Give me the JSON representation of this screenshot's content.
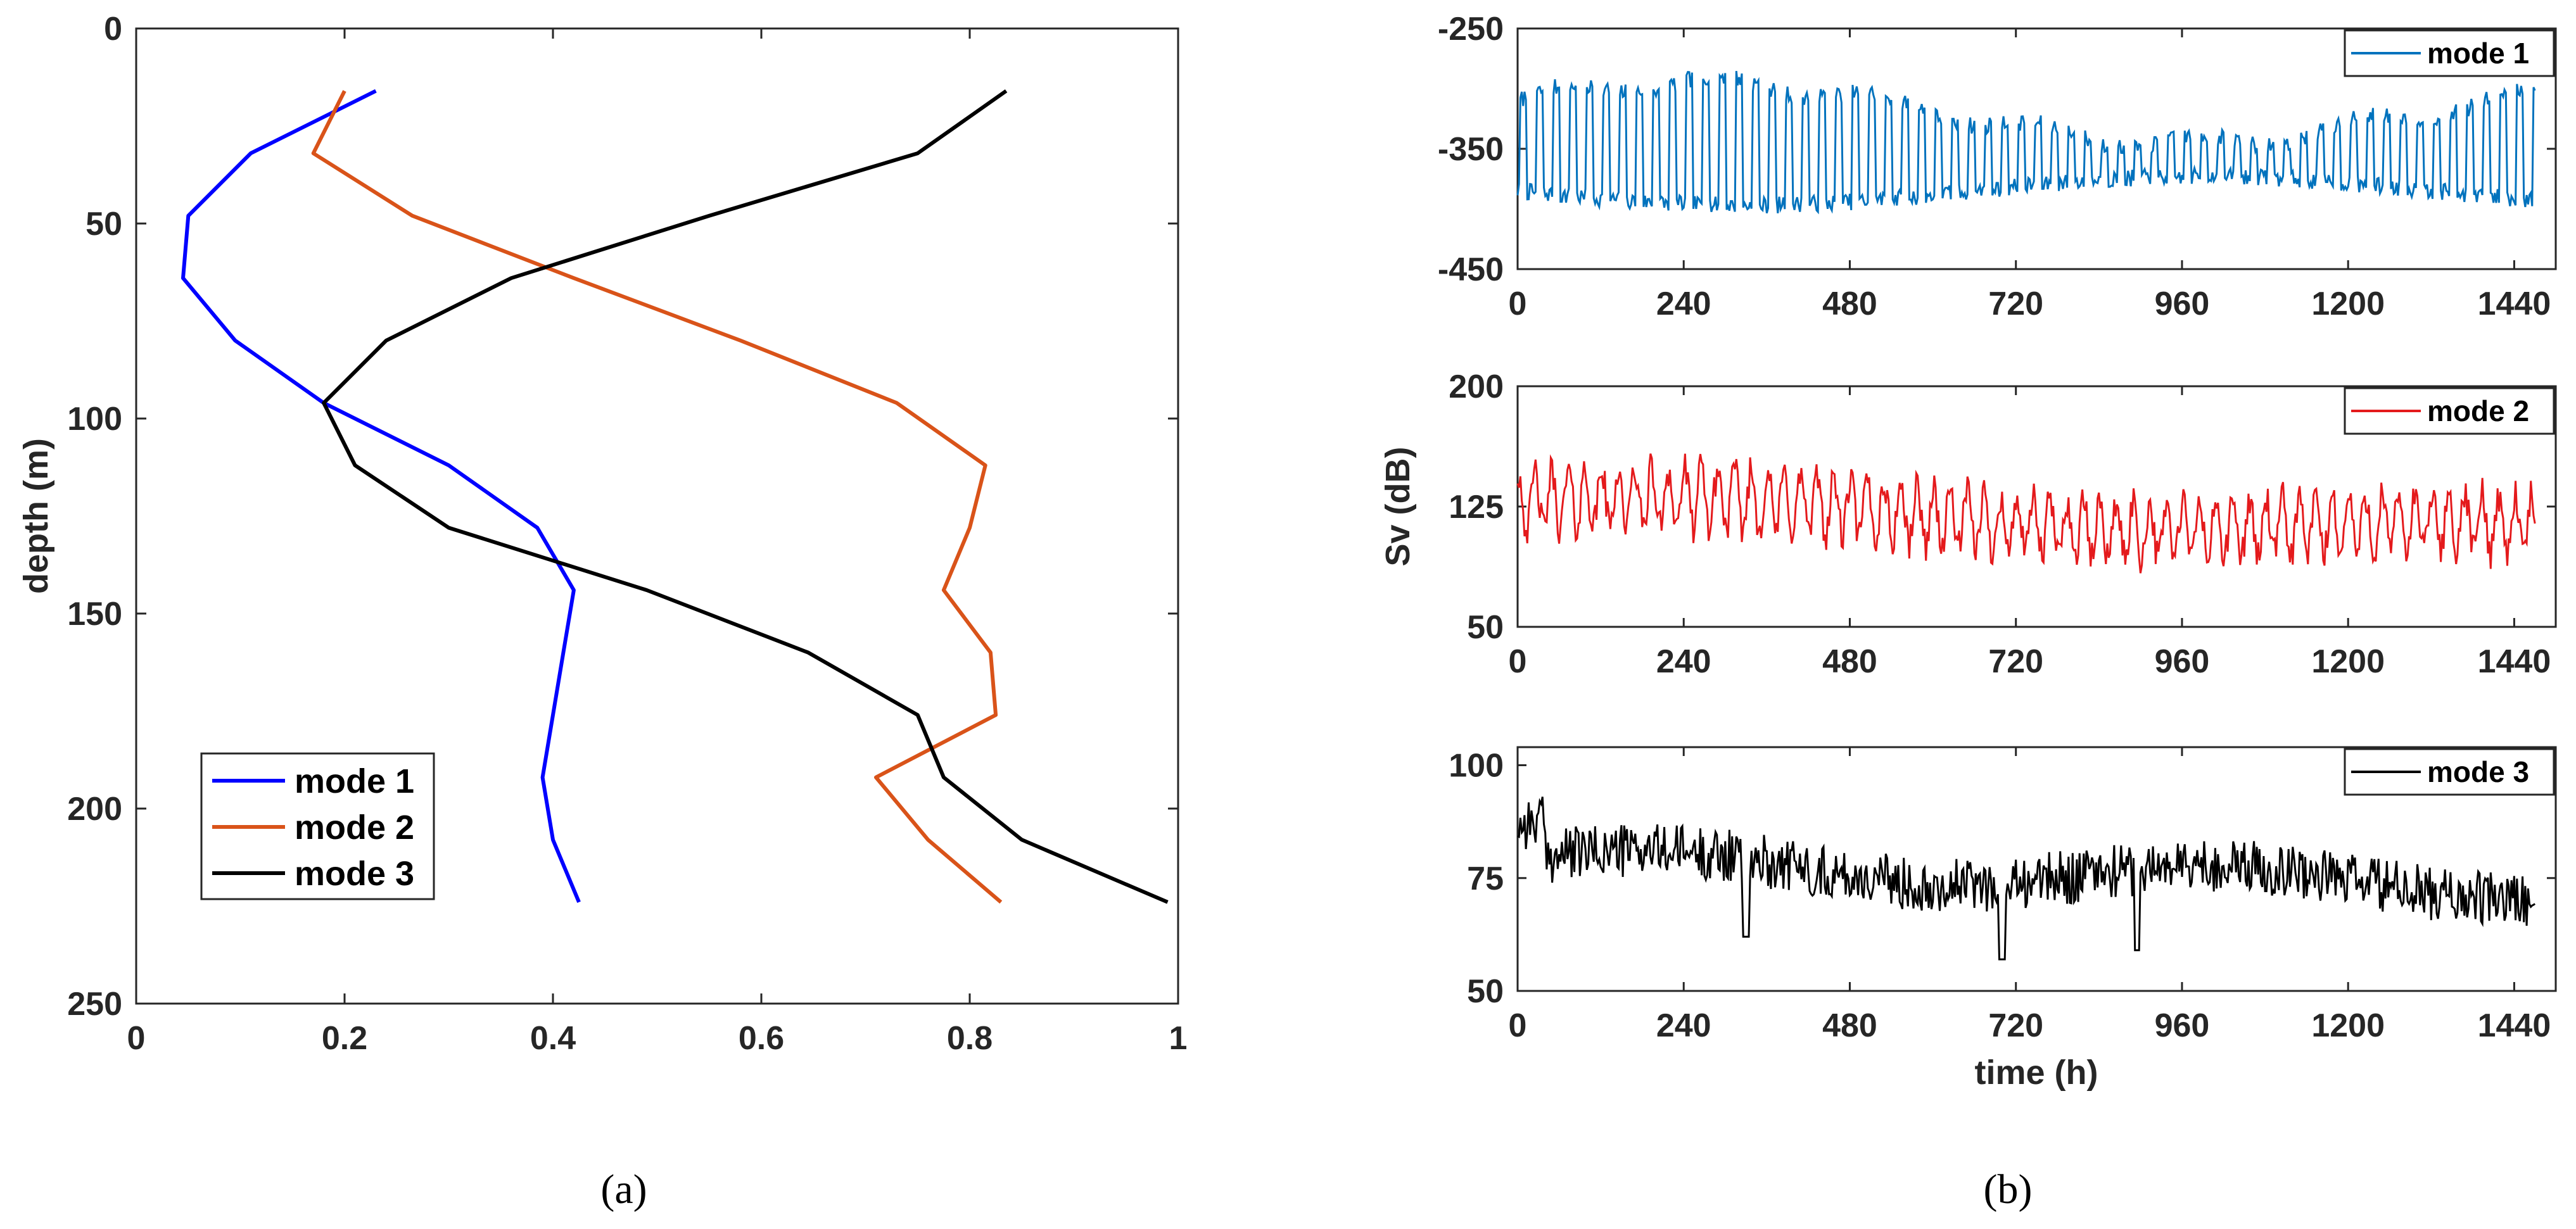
{
  "captions": {
    "a": "(a)",
    "b": "(b)"
  },
  "chart_data": [
    {
      "id": "a",
      "type": "line",
      "xlabel": "",
      "ylabel": "depth (m)",
      "xlim": [
        0,
        1
      ],
      "ylim": [
        0,
        250
      ],
      "y_reversed": true,
      "xticks": [
        "0",
        "0.2",
        "0.4",
        "0.6",
        "0.8",
        "1"
      ],
      "yticks": [
        "0",
        "50",
        "100",
        "150",
        "200",
        "250"
      ],
      "legend_position": "bottom-left",
      "series": [
        {
          "name": "mode 1",
          "color": "#0000ff",
          "x": [
            0.23,
            0.11,
            0.05,
            0.045,
            0.095,
            0.18,
            0.3,
            0.385,
            0.42,
            0.41,
            0.4,
            0.39,
            0.4,
            0.425
          ],
          "y": [
            16,
            32,
            48,
            64,
            80,
            96,
            112,
            128,
            144,
            160,
            176,
            192,
            208,
            224
          ]
        },
        {
          "name": "mode 2",
          "color": "#d95319",
          "x": [
            0.2,
            0.17,
            0.265,
            0.42,
            0.58,
            0.73,
            0.815,
            0.8,
            0.775,
            0.82,
            0.825,
            0.71,
            0.76,
            0.83
          ],
          "y": [
            16,
            32,
            48,
            64,
            80,
            96,
            112,
            128,
            144,
            160,
            176,
            192,
            208,
            224
          ]
        },
        {
          "name": "mode 3",
          "color": "#000000",
          "x": [
            0.835,
            0.75,
            0.55,
            0.36,
            0.24,
            0.18,
            0.21,
            0.3,
            0.49,
            0.645,
            0.75,
            0.775,
            0.85,
            0.99
          ],
          "y": [
            16,
            32,
            48,
            64,
            80,
            96,
            112,
            128,
            144,
            160,
            176,
            192,
            208,
            224
          ]
        }
      ]
    },
    {
      "id": "b1",
      "type": "line",
      "xlabel": "",
      "ylabel": "",
      "xlim": [
        0,
        1500
      ],
      "ylim": [
        -450,
        -250
      ],
      "xticks": [
        "0",
        "240",
        "480",
        "720",
        "960",
        "1200",
        "1440"
      ],
      "yticks": [
        "-250",
        "-350",
        "-450"
      ],
      "legend_position": "top-right",
      "series": [
        {
          "name": "mode 1",
          "color": "#0072bd"
        }
      ]
    },
    {
      "id": "b2",
      "type": "line",
      "xlabel": "",
      "ylabel": "Sv (dB)",
      "xlim": [
        0,
        1500
      ],
      "ylim": [
        50,
        200
      ],
      "xticks": [
        "0",
        "240",
        "480",
        "720",
        "960",
        "1200",
        "1440"
      ],
      "yticks": [
        "200",
        "125",
        "50"
      ],
      "legend_position": "top-right",
      "series": [
        {
          "name": "mode 2",
          "color": "#e41a1c"
        }
      ]
    },
    {
      "id": "b3",
      "type": "line",
      "xlabel": "time (h)",
      "ylabel": "",
      "xlim": [
        0,
        1500
      ],
      "ylim": [
        50,
        104
      ],
      "xticks": [
        "0",
        "240",
        "480",
        "720",
        "960",
        "1200",
        "1440"
      ],
      "yticks": [
        "100",
        "75",
        "50"
      ],
      "legend_position": "top-right",
      "series": [
        {
          "name": "mode 3",
          "color": "#000000"
        }
      ]
    }
  ]
}
